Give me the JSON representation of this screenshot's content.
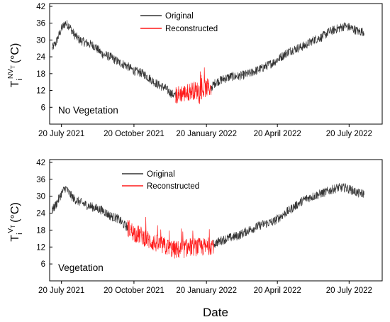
{
  "figure": {
    "shared_xlabel": "Date"
  },
  "chart_data": [
    {
      "type": "line",
      "panel_label": "No Vegetation",
      "ylabel": {
        "base": "T",
        "sub": "i",
        "sup": "NV",
        "supsub": "T",
        "unit": "(°C)"
      },
      "x_axis_type": "date",
      "xlim": [
        "2021-07-05",
        "2022-08-31"
      ],
      "ylim": [
        0,
        43
      ],
      "yticks": [
        6,
        12,
        18,
        24,
        30,
        36,
        42
      ],
      "xticks": [
        {
          "date": "2021-07-20",
          "label": "20 July 2021"
        },
        {
          "date": "2021-10-20",
          "label": "20 October 2021"
        },
        {
          "date": "2022-01-20",
          "label": "20 January 2022"
        },
        {
          "date": "2022-04-20",
          "label": "20 April 2022"
        },
        {
          "date": "2022-07-20",
          "label": "20 July 2022"
        }
      ],
      "legend": {
        "placement": "top-center"
      },
      "series": [
        {
          "name": "Original",
          "color": "#333333",
          "segments": [
            [
              [
                "2021-07-08",
                27
              ],
              [
                "2021-07-13",
                29
              ],
              [
                "2021-07-20",
                34
              ],
              [
                "2021-07-25",
                36
              ],
              [
                "2021-07-30",
                35
              ],
              [
                "2021-08-05",
                32
              ],
              [
                "2021-08-12",
                30
              ],
              [
                "2021-08-20",
                29
              ],
              [
                "2021-08-30",
                28
              ],
              [
                "2021-09-10",
                25
              ],
              [
                "2021-09-20",
                24
              ],
              [
                "2021-10-01",
                22
              ],
              [
                "2021-10-10",
                21
              ],
              [
                "2021-10-20",
                19
              ],
              [
                "2021-11-01",
                18
              ],
              [
                "2021-11-10",
                16
              ],
              [
                "2021-11-20",
                14
              ],
              [
                "2021-11-28",
                13
              ],
              [
                "2021-12-06",
                11
              ],
              [
                "2021-12-12",
                10
              ]
            ],
            [
              [
                "2022-01-26",
                13
              ],
              [
                "2022-02-01",
                15
              ],
              [
                "2022-02-10",
                16
              ],
              [
                "2022-02-20",
                17
              ],
              [
                "2022-03-01",
                17
              ],
              [
                "2022-03-15",
                18
              ],
              [
                "2022-04-01",
                20
              ],
              [
                "2022-04-15",
                22
              ],
              [
                "2022-04-25",
                24
              ],
              [
                "2022-05-05",
                26
              ],
              [
                "2022-05-15",
                27
              ],
              [
                "2022-05-25",
                28
              ],
              [
                "2022-06-05",
                30
              ],
              [
                "2022-06-15",
                31
              ],
              [
                "2022-06-25",
                33
              ],
              [
                "2022-07-05",
                34
              ],
              [
                "2022-07-15",
                35
              ],
              [
                "2022-07-25",
                34
              ],
              [
                "2022-08-01",
                33
              ],
              [
                "2022-08-08",
                33
              ]
            ]
          ]
        },
        {
          "name": "Reconstructed",
          "color": "#ff1a1a",
          "segments": [
            [
              [
                "2021-12-12",
                10
              ],
              [
                "2021-12-18",
                11
              ],
              [
                "2021-12-25",
                11
              ],
              [
                "2022-01-01",
                12
              ],
              [
                "2022-01-08",
                12
              ],
              [
                "2022-01-15",
                12
              ],
              [
                "2022-01-20",
                13
              ],
              [
                "2022-01-26",
                13
              ]
            ]
          ]
        }
      ]
    },
    {
      "type": "line",
      "panel_label": "Vegetation",
      "ylabel": {
        "base": "T",
        "sub": "i",
        "sup": "V",
        "supsub": "T",
        "unit": "(°C)"
      },
      "x_axis_type": "date",
      "xlim": [
        "2021-07-05",
        "2022-08-31"
      ],
      "ylim": [
        0,
        43
      ],
      "yticks": [
        6,
        12,
        18,
        24,
        30,
        36,
        42
      ],
      "xticks": [
        {
          "date": "2021-07-20",
          "label": "20 July 2021"
        },
        {
          "date": "2021-10-20",
          "label": "20 October 2021"
        },
        {
          "date": "2022-01-20",
          "label": "20 January 2022"
        },
        {
          "date": "2022-04-20",
          "label": "20 April 2022"
        },
        {
          "date": "2022-07-20",
          "label": "20 July 2022"
        }
      ],
      "legend": {
        "placement": "top-center"
      },
      "series": [
        {
          "name": "Original",
          "color": "#333333",
          "segments": [
            [
              [
                "2021-07-08",
                25
              ],
              [
                "2021-07-13",
                27
              ],
              [
                "2021-07-20",
                31
              ],
              [
                "2021-07-25",
                33
              ],
              [
                "2021-07-30",
                31
              ],
              [
                "2021-08-05",
                29
              ],
              [
                "2021-08-12",
                28
              ],
              [
                "2021-08-20",
                27
              ],
              [
                "2021-08-30",
                26
              ],
              [
                "2021-09-10",
                25
              ],
              [
                "2021-09-20",
                23
              ],
              [
                "2021-09-30",
                22
              ],
              [
                "2021-10-07",
                20
              ],
              [
                "2021-10-12",
                19
              ]
            ],
            [
              [
                "2022-01-29",
                13
              ],
              [
                "2022-02-05",
                14
              ],
              [
                "2022-02-15",
                15
              ],
              [
                "2022-03-01",
                16
              ],
              [
                "2022-03-15",
                18
              ],
              [
                "2022-04-01",
                20
              ],
              [
                "2022-04-15",
                21
              ],
              [
                "2022-04-25",
                23
              ],
              [
                "2022-05-05",
                25
              ],
              [
                "2022-05-15",
                27
              ],
              [
                "2022-05-25",
                29
              ],
              [
                "2022-06-05",
                30
              ],
              [
                "2022-06-15",
                31
              ],
              [
                "2022-06-25",
                32
              ],
              [
                "2022-07-05",
                33
              ],
              [
                "2022-07-15",
                33
              ],
              [
                "2022-07-25",
                32
              ],
              [
                "2022-08-01",
                31
              ],
              [
                "2022-08-08",
                31
              ]
            ]
          ]
        },
        {
          "name": "Reconstructed",
          "color": "#ff1a1a",
          "segments": [
            [
              [
                "2021-10-12",
                19
              ],
              [
                "2021-10-20",
                17
              ],
              [
                "2021-10-30",
                16
              ],
              [
                "2021-11-10",
                14
              ],
              [
                "2021-11-20",
                13
              ],
              [
                "2021-12-01",
                12
              ],
              [
                "2021-12-10",
                11
              ],
              [
                "2021-12-20",
                11
              ],
              [
                "2021-12-30",
                12
              ],
              [
                "2022-01-10",
                12
              ],
              [
                "2022-01-20",
                12
              ],
              [
                "2022-01-29",
                13
              ]
            ]
          ]
        }
      ]
    }
  ]
}
